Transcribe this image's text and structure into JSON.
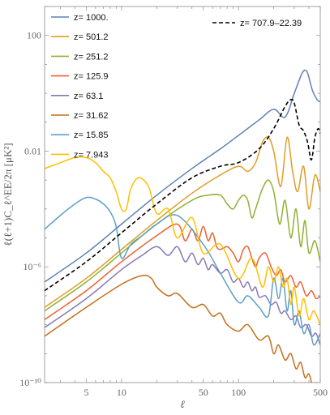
{
  "chart_data": {
    "type": "line",
    "xlabel": "ℓ",
    "ylabel": "ℓ(ℓ+1)C_ℓ^EE/2π [μK²]",
    "x_scale": "log",
    "y_scale": "log",
    "xlim": [
      2.2,
      500
    ],
    "ylim": [
      1e-10,
      1000.0
    ],
    "x_ticks": [
      {
        "value": 5,
        "label": "5"
      },
      {
        "value": 10,
        "label": "10"
      },
      {
        "value": 50,
        "label": "50"
      },
      {
        "value": 100,
        "label": "100"
      },
      {
        "value": 500,
        "label": "500"
      }
    ],
    "y_ticks": [
      {
        "value": 100,
        "label": "100"
      },
      {
        "value": 0.01,
        "label": "0.01"
      },
      {
        "value": 1e-06,
        "label": "10⁻⁶"
      },
      {
        "value": 1e-10,
        "label": "10⁻¹⁰"
      }
    ],
    "legend_position": "top-left",
    "series": [
      {
        "name": "z= 1000.",
        "color": "#5E81B5",
        "dashed": false,
        "x": [
          2.2,
          5,
          10,
          20,
          40,
          70,
          100,
          150,
          200,
          250,
          300,
          350,
          380,
          400,
          430,
          470,
          500
        ],
        "y": [
          3e-07,
          3e-06,
          3e-05,
          0.0003,
          0.0025,
          0.012,
          0.035,
          0.12,
          0.28,
          0.15,
          1.0,
          5.0,
          6.0,
          3.5,
          1.2,
          0.6,
          0.5
        ]
      },
      {
        "name": "z= 501.2",
        "color": "#E19C24",
        "dashed": false,
        "x": [
          2.2,
          5,
          10,
          20,
          40,
          70,
          100,
          120,
          140,
          160,
          180,
          200,
          230,
          260,
          290,
          320,
          360,
          400,
          450,
          500
        ],
        "y": [
          4e-08,
          4e-07,
          4e-06,
          4e-05,
          0.00035,
          0.0015,
          0.003,
          0.002,
          0.004,
          0.02,
          0.03,
          0.01,
          0.0006,
          0.03,
          0.002,
          0.0004,
          0.003,
          0.0001,
          0.0015,
          0.0004
        ]
      },
      {
        "name": "z= 251.2",
        "color": "#8FB032",
        "dashed": false,
        "x": [
          2.2,
          5,
          10,
          20,
          40,
          55,
          70,
          80,
          90,
          100,
          110,
          120,
          130,
          140,
          160,
          180,
          200,
          225,
          250,
          280,
          310,
          340,
          370,
          400,
          450,
          500
        ],
        "y": [
          3e-08,
          3e-07,
          3e-06,
          3e-05,
          0.0002,
          0.0003,
          0.0003,
          0.00015,
          0.0001,
          0.0002,
          0.0003,
          0.0002,
          5e-05,
          0.0001,
          0.0005,
          0.001,
          0.0004,
          3e-05,
          0.0002,
          1e-05,
          0.0001,
          5e-06,
          4e-05,
          3e-06,
          8e-06,
          1.5e-06
        ]
      },
      {
        "name": "z= 125.9",
        "color": "#EB6235",
        "dashed": false,
        "x": [
          2.2,
          5,
          10,
          20,
          30,
          35,
          40,
          45,
          50,
          55,
          60,
          65,
          70,
          80,
          90,
          100,
          110,
          120,
          130,
          140,
          150,
          170,
          190,
          210,
          230,
          250,
          280,
          310,
          340,
          380,
          420,
          460,
          500
        ],
        "y": [
          1.5e-08,
          1.5e-07,
          1.5e-06,
          1.2e-05,
          3e-05,
          8e-06,
          2e-05,
          8e-06,
          2.5e-05,
          8e-06,
          1.5e-05,
          5e-06,
          4e-06,
          5e-06,
          3e-06,
          1.5e-06,
          4e-06,
          5e-06,
          2e-06,
          1e-06,
          2e-06,
          3e-06,
          1e-06,
          5e-07,
          8e-07,
          3e-07,
          5e-07,
          2e-07,
          3e-07,
          1e-07,
          1.5e-07,
          8e-08,
          1e-07
        ]
      },
      {
        "name": "z= 63.1",
        "color": "#8778B3",
        "dashed": false,
        "x": [
          2.2,
          5,
          10,
          15,
          20,
          25,
          30,
          35,
          40,
          45,
          50,
          55,
          60,
          70,
          80,
          90,
          100,
          110,
          120,
          130,
          140,
          150,
          170,
          190,
          210,
          230,
          250,
          280,
          310,
          340,
          380,
          420,
          460,
          500
        ],
        "y": [
          8e-09,
          8e-08,
          8e-07,
          2.5e-06,
          5e-06,
          2.5e-06,
          5e-06,
          1.5e-06,
          3e-06,
          1.2e-06,
          2e-06,
          8e-07,
          1.2e-06,
          6e-07,
          8e-07,
          3e-07,
          4e-07,
          2e-07,
          3e-07,
          1.5e-07,
          2e-07,
          9e-08,
          1e-07,
          5e-08,
          6e-08,
          2.5e-08,
          3e-08,
          1.5e-08,
          2e-08,
          8e-09,
          1e-08,
          4e-09,
          5e-09,
          2e-09
        ]
      },
      {
        "name": "z= 31.62",
        "color": "#C56E1A",
        "dashed": false,
        "x": [
          2.2,
          5,
          10,
          15,
          18,
          20,
          25,
          30,
          40,
          50,
          60,
          70,
          80,
          100,
          120,
          150,
          180,
          200,
          220,
          250,
          280,
          310,
          340,
          370,
          400,
          430,
          460,
          500
        ],
        "y": [
          4e-09,
          4e-08,
          2.5e-07,
          5e-07,
          4e-07,
          2e-07,
          1e-07,
          1.2e-07,
          4e-08,
          5e-08,
          2e-08,
          2.5e-08,
          1e-08,
          6e-09,
          1e-08,
          3e-09,
          4e-09,
          1e-09,
          2e-09,
          6e-10,
          1e-09,
          3e-10,
          5e-10,
          1.5e-10,
          2e-10,
          8e-11,
          1e-10,
          5e-11
        ]
      },
      {
        "name": "z= 15.85",
        "color": "#5D9EC7",
        "dashed": false,
        "x": [
          2.2,
          3,
          4,
          5,
          6,
          7,
          8,
          9,
          10,
          12,
          15,
          20,
          30,
          50,
          70,
          100,
          120,
          150,
          180,
          200,
          220,
          240,
          260,
          280,
          300,
          330,
          360,
          400,
          440,
          500
        ],
        "y": [
          2e-05,
          6e-05,
          0.00015,
          0.00025,
          0.00022,
          0.00015,
          8e-05,
          2.5e-05,
          2e-06,
          6e-06,
          1.2e-05,
          3e-05,
          6e-05,
          6e-06,
          6e-07,
          6e-08,
          1e-07,
          4e-08,
          2e-08,
          4e-07,
          8e-08,
          4e-07,
          3e-08,
          1.5e-07,
          1e-08,
          3e-08,
          5e-09,
          1e-08,
          2e-09,
          5e-09
        ]
      },
      {
        "name": "z= 7.943",
        "color": "#FFBF00",
        "dashed": false,
        "x": [
          2.2,
          3,
          4,
          5,
          6,
          7,
          8,
          9,
          10,
          11,
          12,
          14,
          17,
          20,
          25,
          30,
          40,
          50,
          70,
          100,
          130,
          160,
          180,
          200,
          220,
          240,
          260,
          280,
          300,
          330,
          360,
          400,
          440,
          500
        ],
        "y": [
          0.0025,
          0.004,
          0.006,
          0.006,
          0.004,
          0.002,
          0.0012,
          0.0004,
          0.0001,
          0.0001,
          0.0005,
          0.0012,
          0.0006,
          7e-05,
          0.0001,
          1e-05,
          5e-05,
          3e-06,
          6e-06,
          4e-07,
          2e-06,
          2e-07,
          1e-06,
          3e-07,
          1e-06,
          2e-07,
          4e-07,
          5e-08,
          2e-07,
          2e-08,
          8e-08,
          1.5e-08,
          3e-08,
          1e-08
        ]
      },
      {
        "name": "z= 707.9–22.39",
        "color": "#000000",
        "dashed": true,
        "x": [
          2.2,
          5,
          10,
          20,
          40,
          70,
          100,
          150,
          200,
          250,
          280,
          300,
          330,
          360,
          390,
          420,
          450,
          480,
          500
        ],
        "y": [
          1.5e-07,
          1.5e-06,
          1.5e-05,
          0.00015,
          0.0012,
          0.003,
          0.004,
          0.012,
          0.06,
          0.35,
          0.6,
          0.45,
          0.08,
          0.05,
          0.02,
          0.005,
          0.03,
          0.06,
          0.04
        ]
      }
    ]
  }
}
